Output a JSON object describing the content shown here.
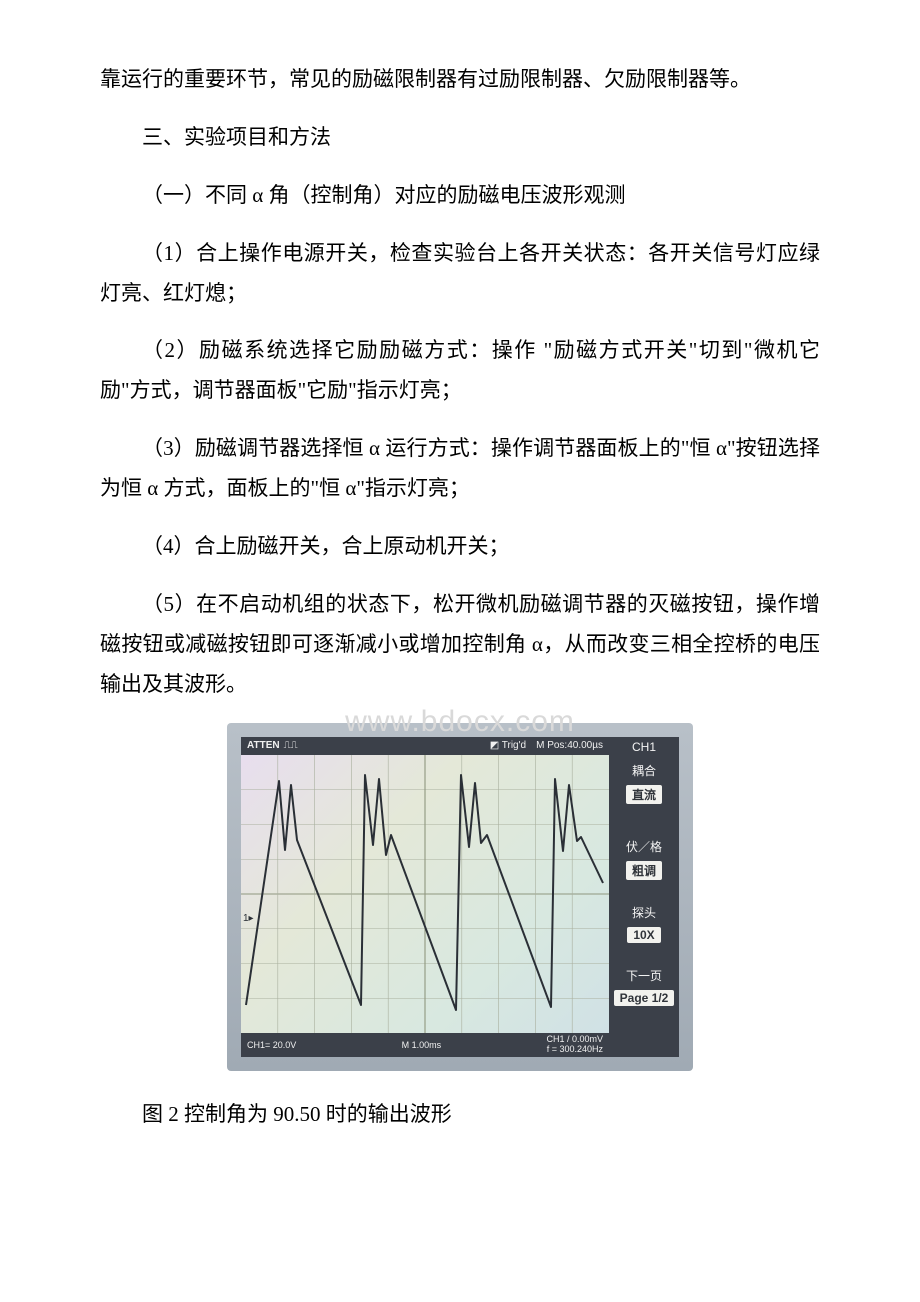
{
  "paragraphs": {
    "p0": "靠运行的重要环节，常见的励磁限制器有过励限制器、欠励限制器等。",
    "h1": "三、实验项目和方法",
    "h2": "（一）不同 α 角（控制角）对应的励磁电压波形观测",
    "p1": "（1）合上操作电源开关，检查实验台上各开关状态：各开关信号灯应绿灯亮、红灯熄；",
    "p2": "（2）励磁系统选择它励励磁方式：操作 \"励磁方式开关\"切到\"微机它励\"方式，调节器面板\"它励\"指示灯亮；",
    "p3": "（3）励磁调节器选择恒 α 运行方式：操作调节器面板上的\"恒 α\"按钮选择为恒 α 方式，面板上的\"恒 α\"指示灯亮；",
    "p4": "（4）合上励磁开关，合上原动机开关；",
    "p5": "（5）在不启动机组的状态下，松开微机励磁调节器的灭磁按钮，操作增磁按钮或减磁按钮即可逐渐减小或增加控制角 α，从而改变三相全控桥的电压输出及其波形。",
    "caption": "图 2 控制角为 90.50 时的输出波形"
  },
  "watermark": "www.bdocx.com",
  "scope": {
    "top_left_brand": "ATTEN",
    "top_trig": "Trig'd",
    "top_mpos": "M Pos:40.00µs",
    "top_ch": "CH1",
    "side": {
      "l1": "耦合",
      "l2": "直流",
      "l3": "伏／格",
      "l4": "粗调",
      "l5": "探头",
      "l6": "10X",
      "l7": "下一页",
      "l8": "Page 1/2"
    },
    "bottom_left": "CH1= 20.0V",
    "bottom_mid": "M 1.00ms",
    "bottom_right": "CH1 / 0.00mV\nf = 300.240Hz",
    "ch1_marker": "1▸",
    "waveform": {
      "type": "line",
      "description": "three-phase full-bridge output, ~sawtooth with spikes",
      "stroke_color": "#2a2f36",
      "stroke_width": 2,
      "grid_color": "#99a090",
      "background_gradient": [
        "#e8ddf0",
        "#e4e8d8",
        "#d8e8e0",
        "#cfe0e6"
      ],
      "x_range_ms": [
        0,
        10
      ],
      "y_range_div": [
        -4,
        4
      ],
      "y_volts_per_div": 20.0,
      "timebase_ms_per_div": 1.0,
      "segments": [
        {
          "x": [
            5,
            38,
            44,
            50,
            56,
            120,
            124,
            132,
            138,
            145,
            150,
            215,
            220,
            228,
            234,
            240,
            246,
            310,
            314,
            322,
            328,
            336,
            340,
            362
          ],
          "y": [
            250,
            26,
            95,
            30,
            85,
            250,
            20,
            90,
            24,
            100,
            80,
            255,
            20,
            92,
            28,
            88,
            80,
            252,
            24,
            96,
            30,
            86,
            82,
            128
          ]
        }
      ]
    },
    "colors": {
      "bezel": "#a8b2bc",
      "panel": "#3b4049",
      "panel_text": "#f2f2ee"
    }
  }
}
